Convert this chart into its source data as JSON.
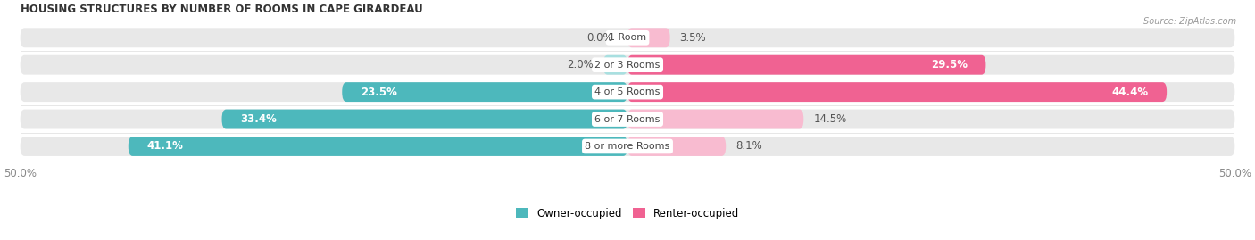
{
  "title": "HOUSING STRUCTURES BY NUMBER OF ROOMS IN CAPE GIRARDEAU",
  "source": "Source: ZipAtlas.com",
  "categories": [
    "1 Room",
    "2 or 3 Rooms",
    "4 or 5 Rooms",
    "6 or 7 Rooms",
    "8 or more Rooms"
  ],
  "owner_values": [
    0.0,
    2.0,
    23.5,
    33.4,
    41.1
  ],
  "renter_values": [
    3.5,
    29.5,
    44.4,
    14.5,
    8.1
  ],
  "owner_color": "#4db8bc",
  "renter_color": "#f06292",
  "owner_color_light": "#a8dfe0",
  "renter_color_light": "#f8bbd0",
  "bar_bg_color": "#e8e8e8",
  "axis_max": 50.0,
  "bar_height": 0.72,
  "label_fontsize": 8.5,
  "title_fontsize": 8.5,
  "category_fontsize": 8.0,
  "legend_fontsize": 8.5,
  "figsize": [
    14.06,
    2.69
  ],
  "dpi": 100
}
